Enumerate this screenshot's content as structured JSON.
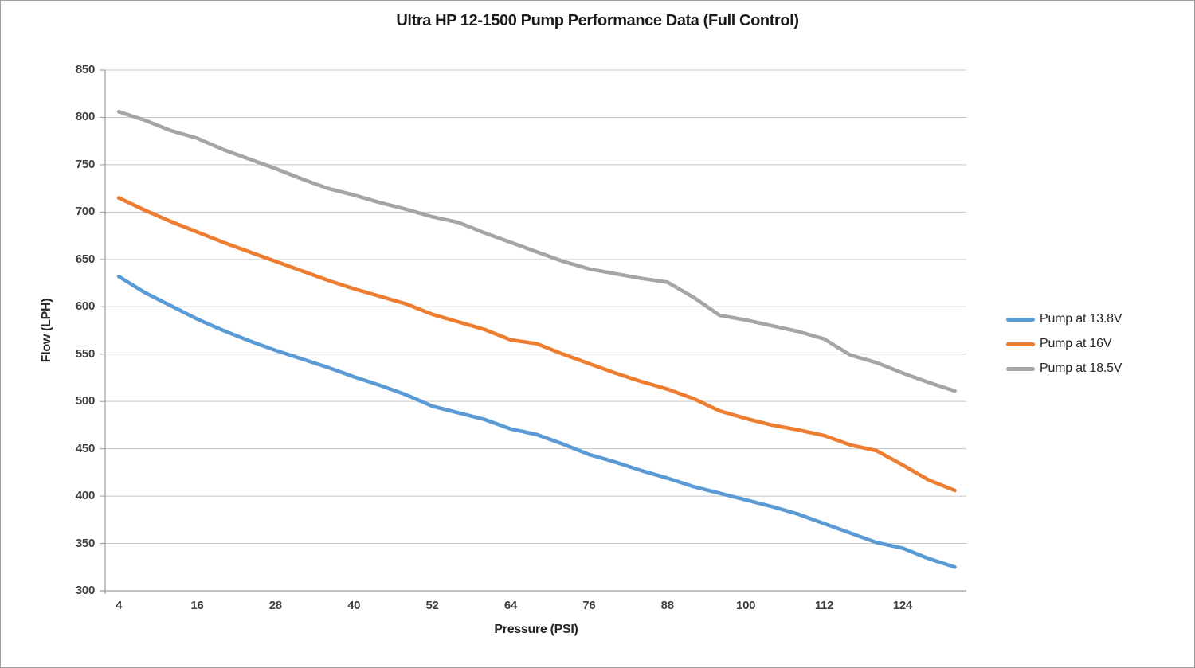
{
  "title": "Ultra HP 12-1500 Pump Performance Data (Full Control)",
  "chart_data": {
    "type": "line",
    "title": "Ultra HP 12-1500 Pump Performance Data (Full Control)",
    "xlabel": "Pressure (PSI)",
    "ylabel": "Flow (LPH)",
    "xlim": [
      0,
      136
    ],
    "ylim": [
      300,
      850
    ],
    "grid": "horizontal",
    "legend_position": "right",
    "x_ticks": [
      4,
      16,
      28,
      40,
      52,
      64,
      76,
      88,
      100,
      112,
      124
    ],
    "y_ticks": [
      850,
      800,
      750,
      700,
      650,
      600,
      550,
      500,
      450,
      400,
      350,
      300
    ],
    "x": [
      4,
      8,
      12,
      16,
      20,
      24,
      28,
      32,
      36,
      40,
      44,
      48,
      52,
      56,
      60,
      64,
      68,
      72,
      76,
      80,
      84,
      88,
      92,
      96,
      100,
      104,
      108,
      112,
      116,
      120,
      124,
      128,
      132
    ],
    "series": [
      {
        "name": "Pump at 13.8V",
        "color": "#5B9BD5",
        "values": [
          632,
          615,
          601,
          587,
          575,
          564,
          554,
          545,
          536,
          526,
          517,
          507,
          495,
          488,
          481,
          471,
          465,
          455,
          444,
          436,
          427,
          419,
          410,
          403,
          396,
          389,
          381,
          371,
          361,
          351,
          345,
          334,
          325
        ]
      },
      {
        "name": "Pump at 16V",
        "color": "#ED7D31",
        "values": [
          715,
          702,
          690,
          679,
          668,
          658,
          648,
          638,
          628,
          619,
          611,
          603,
          592,
          584,
          576,
          565,
          561,
          550,
          540,
          530,
          521,
          513,
          503,
          490,
          482,
          475,
          470,
          464,
          454,
          448,
          433,
          417,
          406
        ]
      },
      {
        "name": "Pump at 18.5V",
        "color": "#A5A5A5",
        "values": [
          806,
          797,
          786,
          778,
          766,
          756,
          746,
          735,
          725,
          718,
          710,
          703,
          695,
          689,
          678,
          668,
          658,
          648,
          640,
          635,
          630,
          626,
          610,
          591,
          586,
          580,
          574,
          566,
          549,
          541,
          530,
          520,
          511
        ]
      }
    ],
    "colors": {
      "gridline": "#c7c7c7",
      "axis": "#9e9e9e",
      "background": "#ffffff"
    }
  }
}
